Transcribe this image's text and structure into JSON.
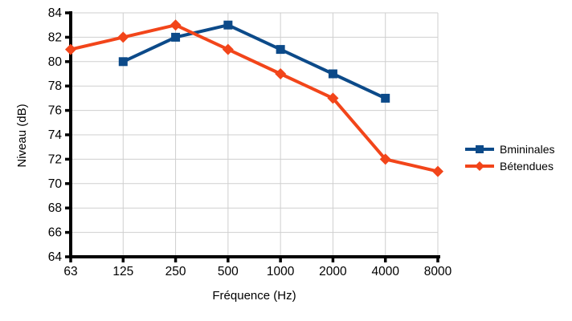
{
  "chart_data": {
    "type": "line",
    "title": "",
    "xlabel": "Fréquence (Hz)",
    "ylabel": "Niveau (dB)",
    "categories": [
      "63",
      "125",
      "250",
      "500",
      "1000",
      "2000",
      "4000",
      "8000"
    ],
    "series": [
      {
        "name": "Bmininales",
        "color": "#0c4a89",
        "marker": "square",
        "values": [
          null,
          80,
          82,
          83,
          81,
          79,
          77,
          null
        ]
      },
      {
        "name": "Bétendues",
        "color": "#f2451a",
        "marker": "diamond",
        "values": [
          81,
          82,
          83,
          81,
          79,
          77,
          72,
          71
        ]
      }
    ],
    "ylim": [
      64,
      84
    ],
    "ytick_step": 2,
    "grid": true,
    "legend_position": "right",
    "colors": {
      "grid": "#cfcfcf",
      "axis": "#000000",
      "text": "#000000",
      "background": "#ffffff"
    }
  }
}
